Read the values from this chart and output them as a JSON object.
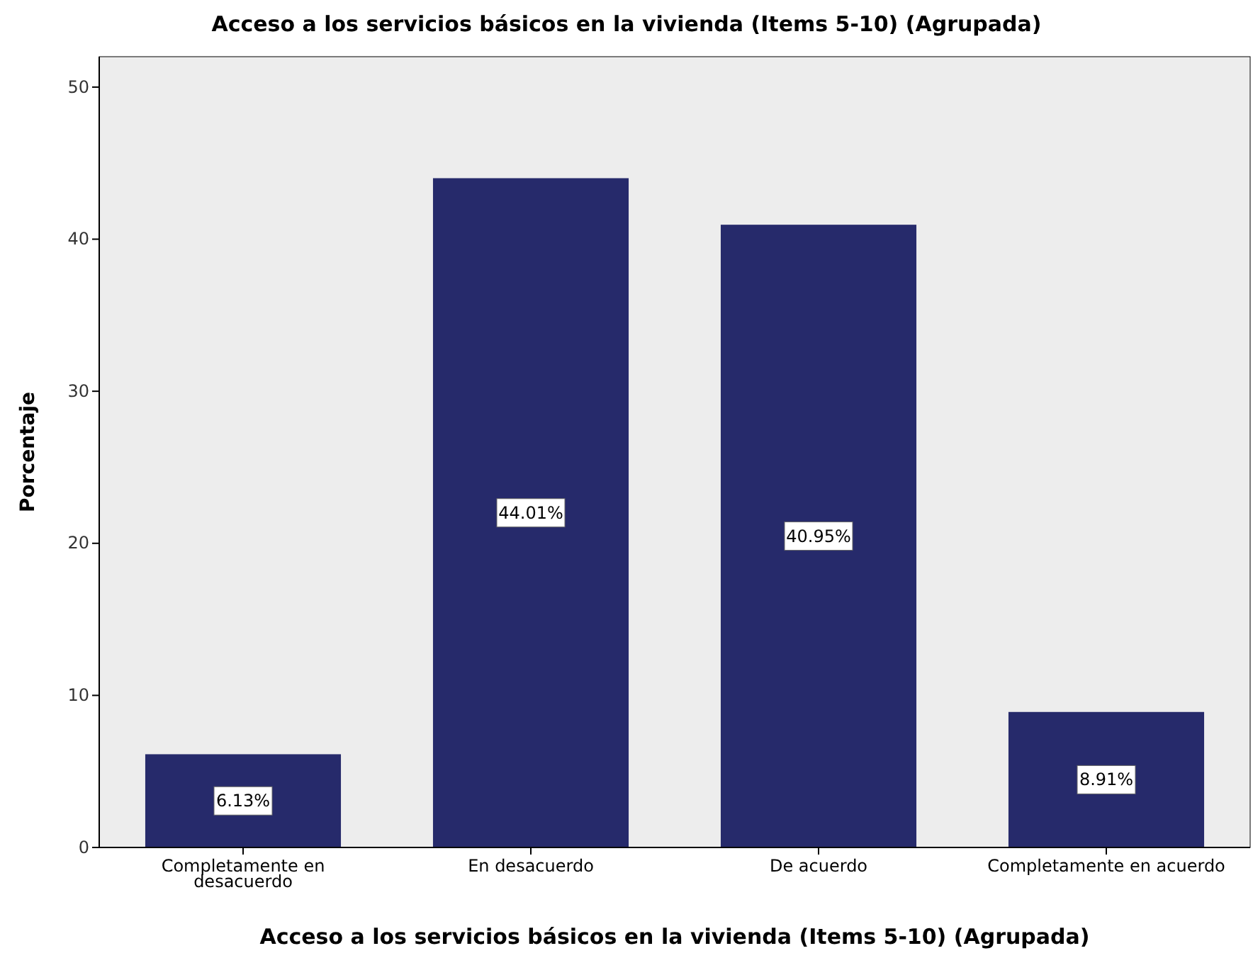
{
  "chart_data": {
    "type": "bar",
    "title": "Acceso a los servicios básicos en la vivienda (Items 5-10) (Agrupada)",
    "xlabel": "Acceso a los servicios básicos en la vivienda (Items 5-10) (Agrupada)",
    "ylabel": "Porcentaje",
    "categories": [
      "Completamente en desacuerdo",
      "En desacuerdo",
      "De acuerdo",
      "Completamente en acuerdo"
    ],
    "values": [
      6.13,
      44.01,
      40.95,
      8.91
    ],
    "value_labels": [
      "6.13%",
      "44.01%",
      "40.95%",
      "8.91%"
    ],
    "color": "#262a6b",
    "ylim": [
      0,
      52
    ],
    "yticks": [
      0,
      10,
      20,
      30,
      40,
      50
    ],
    "grid": false
  }
}
